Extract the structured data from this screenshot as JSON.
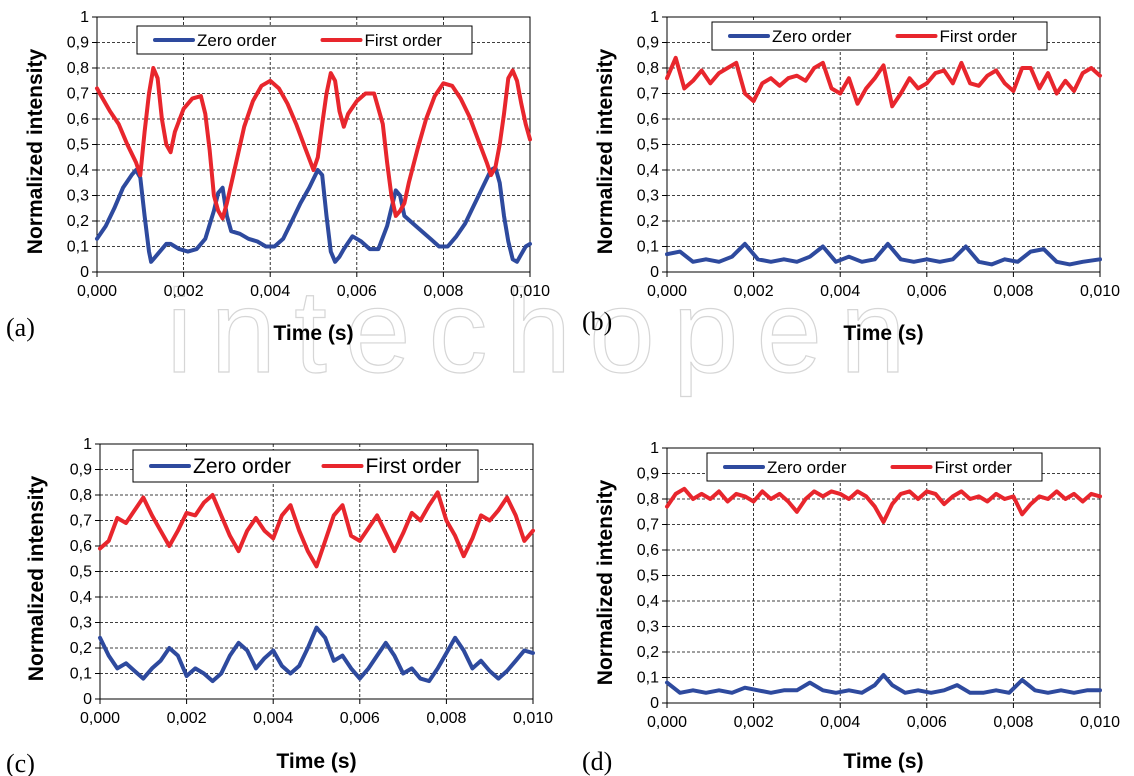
{
  "colors": {
    "zero": "#2e4a9e",
    "first": "#e8262d",
    "grid": "#000000"
  },
  "chart_data": [
    {
      "type": "line",
      "panel_label": "(a)",
      "xlabel": "Time (s)",
      "ylabel": "Normalized intensity",
      "xlim": [
        0,
        0.01
      ],
      "ylim": [
        0,
        1
      ],
      "x_ticks": [
        "0,000",
        "0,002",
        "0,004",
        "0,006",
        "0,008",
        "0,010"
      ],
      "y_ticks": [
        "0",
        "0,1",
        "0,2",
        "0,3",
        "0,4",
        "0,5",
        "0,6",
        "0,7",
        "0,8",
        "0,9",
        "1"
      ],
      "legend": {
        "position": "top-center",
        "entries": [
          "Zero order",
          "First order"
        ]
      },
      "series": [
        {
          "name": "Zero order",
          "color": "#2e4a9e",
          "x": [
            0,
            0.0002,
            0.0004,
            0.0006,
            0.0008,
            0.0009,
            0.001,
            0.0011,
            0.0012,
            0.00125,
            0.0013,
            0.0014,
            0.0016,
            0.0017,
            0.0019,
            0.0021,
            0.0023,
            0.0025,
            0.0027,
            0.0028,
            0.0029,
            0.003,
            0.0031,
            0.0033,
            0.0035,
            0.0037,
            0.0039,
            0.0041,
            0.0043,
            0.0045,
            0.0047,
            0.0049,
            0.0051,
            0.0052,
            0.0053,
            0.0054,
            0.0055,
            0.0056,
            0.0057,
            0.0059,
            0.0061,
            0.0063,
            0.0065,
            0.0067,
            0.0069,
            0.007,
            0.0071,
            0.0073,
            0.0075,
            0.0077,
            0.0079,
            0.0081,
            0.0083,
            0.0085,
            0.0087,
            0.0089,
            0.0091,
            0.0092,
            0.0093,
            0.0094,
            0.0095,
            0.0096,
            0.0097,
            0.0098,
            0.0099,
            0.01
          ],
          "y": [
            0.13,
            0.18,
            0.25,
            0.33,
            0.38,
            0.4,
            0.37,
            0.22,
            0.08,
            0.04,
            0.05,
            0.07,
            0.11,
            0.11,
            0.09,
            0.08,
            0.09,
            0.13,
            0.24,
            0.31,
            0.33,
            0.22,
            0.16,
            0.15,
            0.13,
            0.12,
            0.1,
            0.1,
            0.13,
            0.2,
            0.27,
            0.33,
            0.4,
            0.38,
            0.22,
            0.08,
            0.04,
            0.06,
            0.09,
            0.14,
            0.12,
            0.09,
            0.09,
            0.18,
            0.32,
            0.3,
            0.22,
            0.19,
            0.16,
            0.13,
            0.1,
            0.1,
            0.14,
            0.19,
            0.26,
            0.33,
            0.4,
            0.41,
            0.35,
            0.22,
            0.12,
            0.05,
            0.04,
            0.07,
            0.1,
            0.11
          ]
        },
        {
          "name": "First order",
          "color": "#e8262d",
          "x": [
            0,
            0.0001,
            0.0003,
            0.0005,
            0.0007,
            0.0009,
            0.001,
            0.0011,
            0.0012,
            0.0013,
            0.0014,
            0.0015,
            0.0016,
            0.0017,
            0.0018,
            0.002,
            0.0022,
            0.0024,
            0.0025,
            0.0026,
            0.0027,
            0.0028,
            0.0029,
            0.003,
            0.0032,
            0.0034,
            0.0036,
            0.0038,
            0.004,
            0.0042,
            0.0044,
            0.0046,
            0.0048,
            0.005,
            0.0051,
            0.0052,
            0.0053,
            0.0054,
            0.0055,
            0.0056,
            0.0057,
            0.0058,
            0.006,
            0.0062,
            0.0064,
            0.0066,
            0.0067,
            0.0068,
            0.0069,
            0.007,
            0.0071,
            0.0072,
            0.0074,
            0.0076,
            0.0078,
            0.008,
            0.0082,
            0.0084,
            0.0086,
            0.0088,
            0.009,
            0.0091,
            0.0092,
            0.0093,
            0.0094,
            0.0095,
            0.0096,
            0.0097,
            0.0098,
            0.0099,
            0.01
          ],
          "y": [
            0.72,
            0.69,
            0.63,
            0.58,
            0.5,
            0.43,
            0.38,
            0.55,
            0.7,
            0.8,
            0.76,
            0.6,
            0.5,
            0.47,
            0.55,
            0.64,
            0.68,
            0.69,
            0.62,
            0.48,
            0.3,
            0.24,
            0.21,
            0.27,
            0.42,
            0.57,
            0.67,
            0.73,
            0.75,
            0.72,
            0.66,
            0.58,
            0.49,
            0.4,
            0.45,
            0.58,
            0.7,
            0.78,
            0.75,
            0.63,
            0.57,
            0.62,
            0.67,
            0.7,
            0.7,
            0.58,
            0.43,
            0.3,
            0.22,
            0.24,
            0.27,
            0.35,
            0.48,
            0.6,
            0.69,
            0.74,
            0.73,
            0.68,
            0.61,
            0.52,
            0.43,
            0.38,
            0.41,
            0.5,
            0.62,
            0.76,
            0.79,
            0.75,
            0.66,
            0.58,
            0.52
          ]
        }
      ]
    },
    {
      "type": "line",
      "panel_label": "(b)",
      "xlabel": "Time (s)",
      "ylabel": "Normalized intensity",
      "xlim": [
        0,
        0.01
      ],
      "ylim": [
        0,
        1
      ],
      "x_ticks": [
        "0,000",
        "0,002",
        "0,004",
        "0,006",
        "0,008",
        "0,010"
      ],
      "y_ticks": [
        "0",
        "0,1",
        "0,2",
        "0,3",
        "0,4",
        "0,5",
        "0,6",
        "0,7",
        "0,8",
        "0,9",
        "1"
      ],
      "legend": {
        "position": "top-center",
        "entries": [
          "Zero order",
          "First order"
        ]
      },
      "series": [
        {
          "name": "Zero order",
          "color": "#2e4a9e",
          "x": [
            0,
            0.0003,
            0.0006,
            0.0009,
            0.0012,
            0.0015,
            0.0018,
            0.0021,
            0.0024,
            0.0027,
            0.003,
            0.0033,
            0.0036,
            0.0039,
            0.0042,
            0.0045,
            0.0048,
            0.0051,
            0.0054,
            0.0057,
            0.006,
            0.0063,
            0.0066,
            0.0069,
            0.0072,
            0.0075,
            0.0078,
            0.0081,
            0.0084,
            0.0087,
            0.009,
            0.0093,
            0.0096,
            0.01
          ],
          "y": [
            0.07,
            0.08,
            0.04,
            0.05,
            0.04,
            0.06,
            0.11,
            0.05,
            0.04,
            0.05,
            0.04,
            0.06,
            0.1,
            0.04,
            0.06,
            0.04,
            0.05,
            0.11,
            0.05,
            0.04,
            0.05,
            0.04,
            0.05,
            0.1,
            0.04,
            0.03,
            0.05,
            0.04,
            0.08,
            0.09,
            0.04,
            0.03,
            0.04,
            0.05
          ]
        },
        {
          "name": "First order",
          "color": "#e8262d",
          "x": [
            0,
            0.0002,
            0.0004,
            0.0006,
            0.0008,
            0.001,
            0.0012,
            0.0014,
            0.0016,
            0.0018,
            0.002,
            0.0022,
            0.0024,
            0.0026,
            0.0028,
            0.003,
            0.0032,
            0.0034,
            0.0036,
            0.0038,
            0.004,
            0.0042,
            0.0044,
            0.0046,
            0.0048,
            0.005,
            0.0052,
            0.0054,
            0.0056,
            0.0058,
            0.006,
            0.0062,
            0.0064,
            0.0066,
            0.0068,
            0.007,
            0.0072,
            0.0074,
            0.0076,
            0.0078,
            0.008,
            0.0082,
            0.0084,
            0.0086,
            0.0088,
            0.009,
            0.0092,
            0.0094,
            0.0096,
            0.0098,
            0.01
          ],
          "y": [
            0.76,
            0.84,
            0.72,
            0.75,
            0.79,
            0.74,
            0.78,
            0.8,
            0.82,
            0.7,
            0.67,
            0.74,
            0.76,
            0.73,
            0.76,
            0.77,
            0.75,
            0.8,
            0.82,
            0.72,
            0.7,
            0.76,
            0.66,
            0.72,
            0.76,
            0.81,
            0.65,
            0.7,
            0.76,
            0.72,
            0.74,
            0.78,
            0.79,
            0.74,
            0.82,
            0.74,
            0.73,
            0.77,
            0.79,
            0.74,
            0.71,
            0.8,
            0.8,
            0.72,
            0.78,
            0.7,
            0.75,
            0.71,
            0.78,
            0.8,
            0.77
          ]
        }
      ]
    },
    {
      "type": "line",
      "panel_label": "(c)",
      "xlabel": "Time (s)",
      "ylabel": "Normalized intensity",
      "xlim": [
        0,
        0.01
      ],
      "ylim": [
        0,
        1
      ],
      "x_ticks": [
        "0,000",
        "0,002",
        "0,004",
        "0,006",
        "0,008",
        "0,010"
      ],
      "y_ticks": [
        "0",
        "0,1",
        "0,2",
        "0,3",
        "0,4",
        "0,5",
        "0,6",
        "0,7",
        "0,8",
        "0,9",
        "1"
      ],
      "legend": {
        "position": "top-center",
        "entries": [
          "Zero order",
          "First order"
        ]
      },
      "series": [
        {
          "name": "Zero order",
          "color": "#2e4a9e",
          "x": [
            0,
            0.0002,
            0.0004,
            0.0006,
            0.0008,
            0.001,
            0.0012,
            0.0014,
            0.0016,
            0.0018,
            0.002,
            0.0022,
            0.0024,
            0.0026,
            0.0028,
            0.003,
            0.0032,
            0.0034,
            0.0036,
            0.0038,
            0.004,
            0.0042,
            0.0044,
            0.0046,
            0.0048,
            0.005,
            0.0052,
            0.0054,
            0.0056,
            0.0058,
            0.006,
            0.0062,
            0.0064,
            0.0066,
            0.0068,
            0.007,
            0.0072,
            0.0074,
            0.0076,
            0.0078,
            0.008,
            0.0082,
            0.0084,
            0.0086,
            0.0088,
            0.009,
            0.0092,
            0.0094,
            0.0096,
            0.0098,
            0.01
          ],
          "y": [
            0.24,
            0.17,
            0.12,
            0.14,
            0.11,
            0.08,
            0.12,
            0.15,
            0.2,
            0.17,
            0.09,
            0.12,
            0.1,
            0.07,
            0.1,
            0.17,
            0.22,
            0.19,
            0.12,
            0.16,
            0.19,
            0.13,
            0.1,
            0.13,
            0.2,
            0.28,
            0.24,
            0.15,
            0.17,
            0.12,
            0.08,
            0.12,
            0.17,
            0.22,
            0.17,
            0.1,
            0.12,
            0.08,
            0.07,
            0.12,
            0.18,
            0.24,
            0.19,
            0.12,
            0.15,
            0.11,
            0.08,
            0.11,
            0.15,
            0.19,
            0.18
          ]
        },
        {
          "name": "First order",
          "color": "#e8262d",
          "x": [
            0,
            0.0002,
            0.0004,
            0.0006,
            0.0008,
            0.001,
            0.0012,
            0.0014,
            0.0016,
            0.0018,
            0.002,
            0.0022,
            0.0024,
            0.0026,
            0.0028,
            0.003,
            0.0032,
            0.0034,
            0.0036,
            0.0038,
            0.004,
            0.0042,
            0.0044,
            0.0046,
            0.0048,
            0.005,
            0.0052,
            0.0054,
            0.0056,
            0.0058,
            0.006,
            0.0062,
            0.0064,
            0.0066,
            0.0068,
            0.007,
            0.0072,
            0.0074,
            0.0076,
            0.0078,
            0.008,
            0.0082,
            0.0084,
            0.0086,
            0.0088,
            0.009,
            0.0092,
            0.0094,
            0.0096,
            0.0098,
            0.01
          ],
          "y": [
            0.59,
            0.62,
            0.71,
            0.69,
            0.74,
            0.79,
            0.72,
            0.66,
            0.6,
            0.66,
            0.73,
            0.72,
            0.77,
            0.8,
            0.72,
            0.64,
            0.58,
            0.66,
            0.71,
            0.66,
            0.63,
            0.72,
            0.76,
            0.66,
            0.58,
            0.52,
            0.62,
            0.72,
            0.76,
            0.64,
            0.62,
            0.67,
            0.72,
            0.65,
            0.58,
            0.65,
            0.73,
            0.7,
            0.76,
            0.81,
            0.7,
            0.64,
            0.56,
            0.63,
            0.72,
            0.7,
            0.74,
            0.79,
            0.72,
            0.62,
            0.66
          ]
        }
      ]
    },
    {
      "type": "line",
      "panel_label": "(d)",
      "xlabel": "Time (s)",
      "ylabel": "Normalized intensity",
      "xlim": [
        0,
        0.01
      ],
      "ylim": [
        0,
        1
      ],
      "x_ticks": [
        "0,000",
        "0,002",
        "0,004",
        "0,006",
        "0,008",
        "0,010"
      ],
      "y_ticks": [
        "0",
        "0,1",
        "0,2",
        "0,3",
        "0,4",
        "0,5",
        "0,6",
        "0,7",
        "0,8",
        "0,9",
        "1"
      ],
      "legend": {
        "position": "top-center",
        "entries": [
          "Zero order",
          "First order"
        ]
      },
      "series": [
        {
          "name": "Zero order",
          "color": "#2e4a9e",
          "x": [
            0,
            0.0003,
            0.0006,
            0.0009,
            0.0012,
            0.0015,
            0.0018,
            0.0021,
            0.0024,
            0.0027,
            0.003,
            0.0033,
            0.0036,
            0.0039,
            0.0042,
            0.0045,
            0.0048,
            0.005,
            0.0052,
            0.0055,
            0.0058,
            0.0061,
            0.0064,
            0.0067,
            0.007,
            0.0073,
            0.0076,
            0.0079,
            0.0082,
            0.0085,
            0.0088,
            0.0091,
            0.0094,
            0.0097,
            0.01
          ],
          "y": [
            0.08,
            0.04,
            0.05,
            0.04,
            0.05,
            0.04,
            0.06,
            0.05,
            0.04,
            0.05,
            0.05,
            0.08,
            0.05,
            0.04,
            0.05,
            0.04,
            0.07,
            0.11,
            0.07,
            0.04,
            0.05,
            0.04,
            0.05,
            0.07,
            0.04,
            0.04,
            0.05,
            0.04,
            0.09,
            0.05,
            0.04,
            0.05,
            0.04,
            0.05,
            0.05
          ]
        },
        {
          "name": "First order",
          "color": "#e8262d",
          "x": [
            0,
            0.0002,
            0.0004,
            0.0006,
            0.0008,
            0.001,
            0.0012,
            0.0014,
            0.0016,
            0.0018,
            0.002,
            0.0022,
            0.0024,
            0.0026,
            0.0028,
            0.003,
            0.0032,
            0.0034,
            0.0036,
            0.0038,
            0.004,
            0.0042,
            0.0044,
            0.0046,
            0.0048,
            0.005,
            0.0052,
            0.0054,
            0.0056,
            0.0058,
            0.006,
            0.0062,
            0.0064,
            0.0066,
            0.0068,
            0.007,
            0.0072,
            0.0074,
            0.0076,
            0.0078,
            0.008,
            0.0082,
            0.0084,
            0.0086,
            0.0088,
            0.009,
            0.0092,
            0.0094,
            0.0096,
            0.0098,
            0.01
          ],
          "y": [
            0.77,
            0.82,
            0.84,
            0.8,
            0.82,
            0.8,
            0.83,
            0.79,
            0.82,
            0.81,
            0.79,
            0.83,
            0.8,
            0.82,
            0.79,
            0.75,
            0.8,
            0.83,
            0.81,
            0.83,
            0.82,
            0.8,
            0.83,
            0.81,
            0.77,
            0.71,
            0.78,
            0.82,
            0.83,
            0.8,
            0.83,
            0.82,
            0.78,
            0.81,
            0.83,
            0.8,
            0.81,
            0.79,
            0.82,
            0.8,
            0.81,
            0.74,
            0.78,
            0.81,
            0.8,
            0.83,
            0.8,
            0.82,
            0.79,
            0.82,
            0.81
          ]
        }
      ]
    }
  ]
}
